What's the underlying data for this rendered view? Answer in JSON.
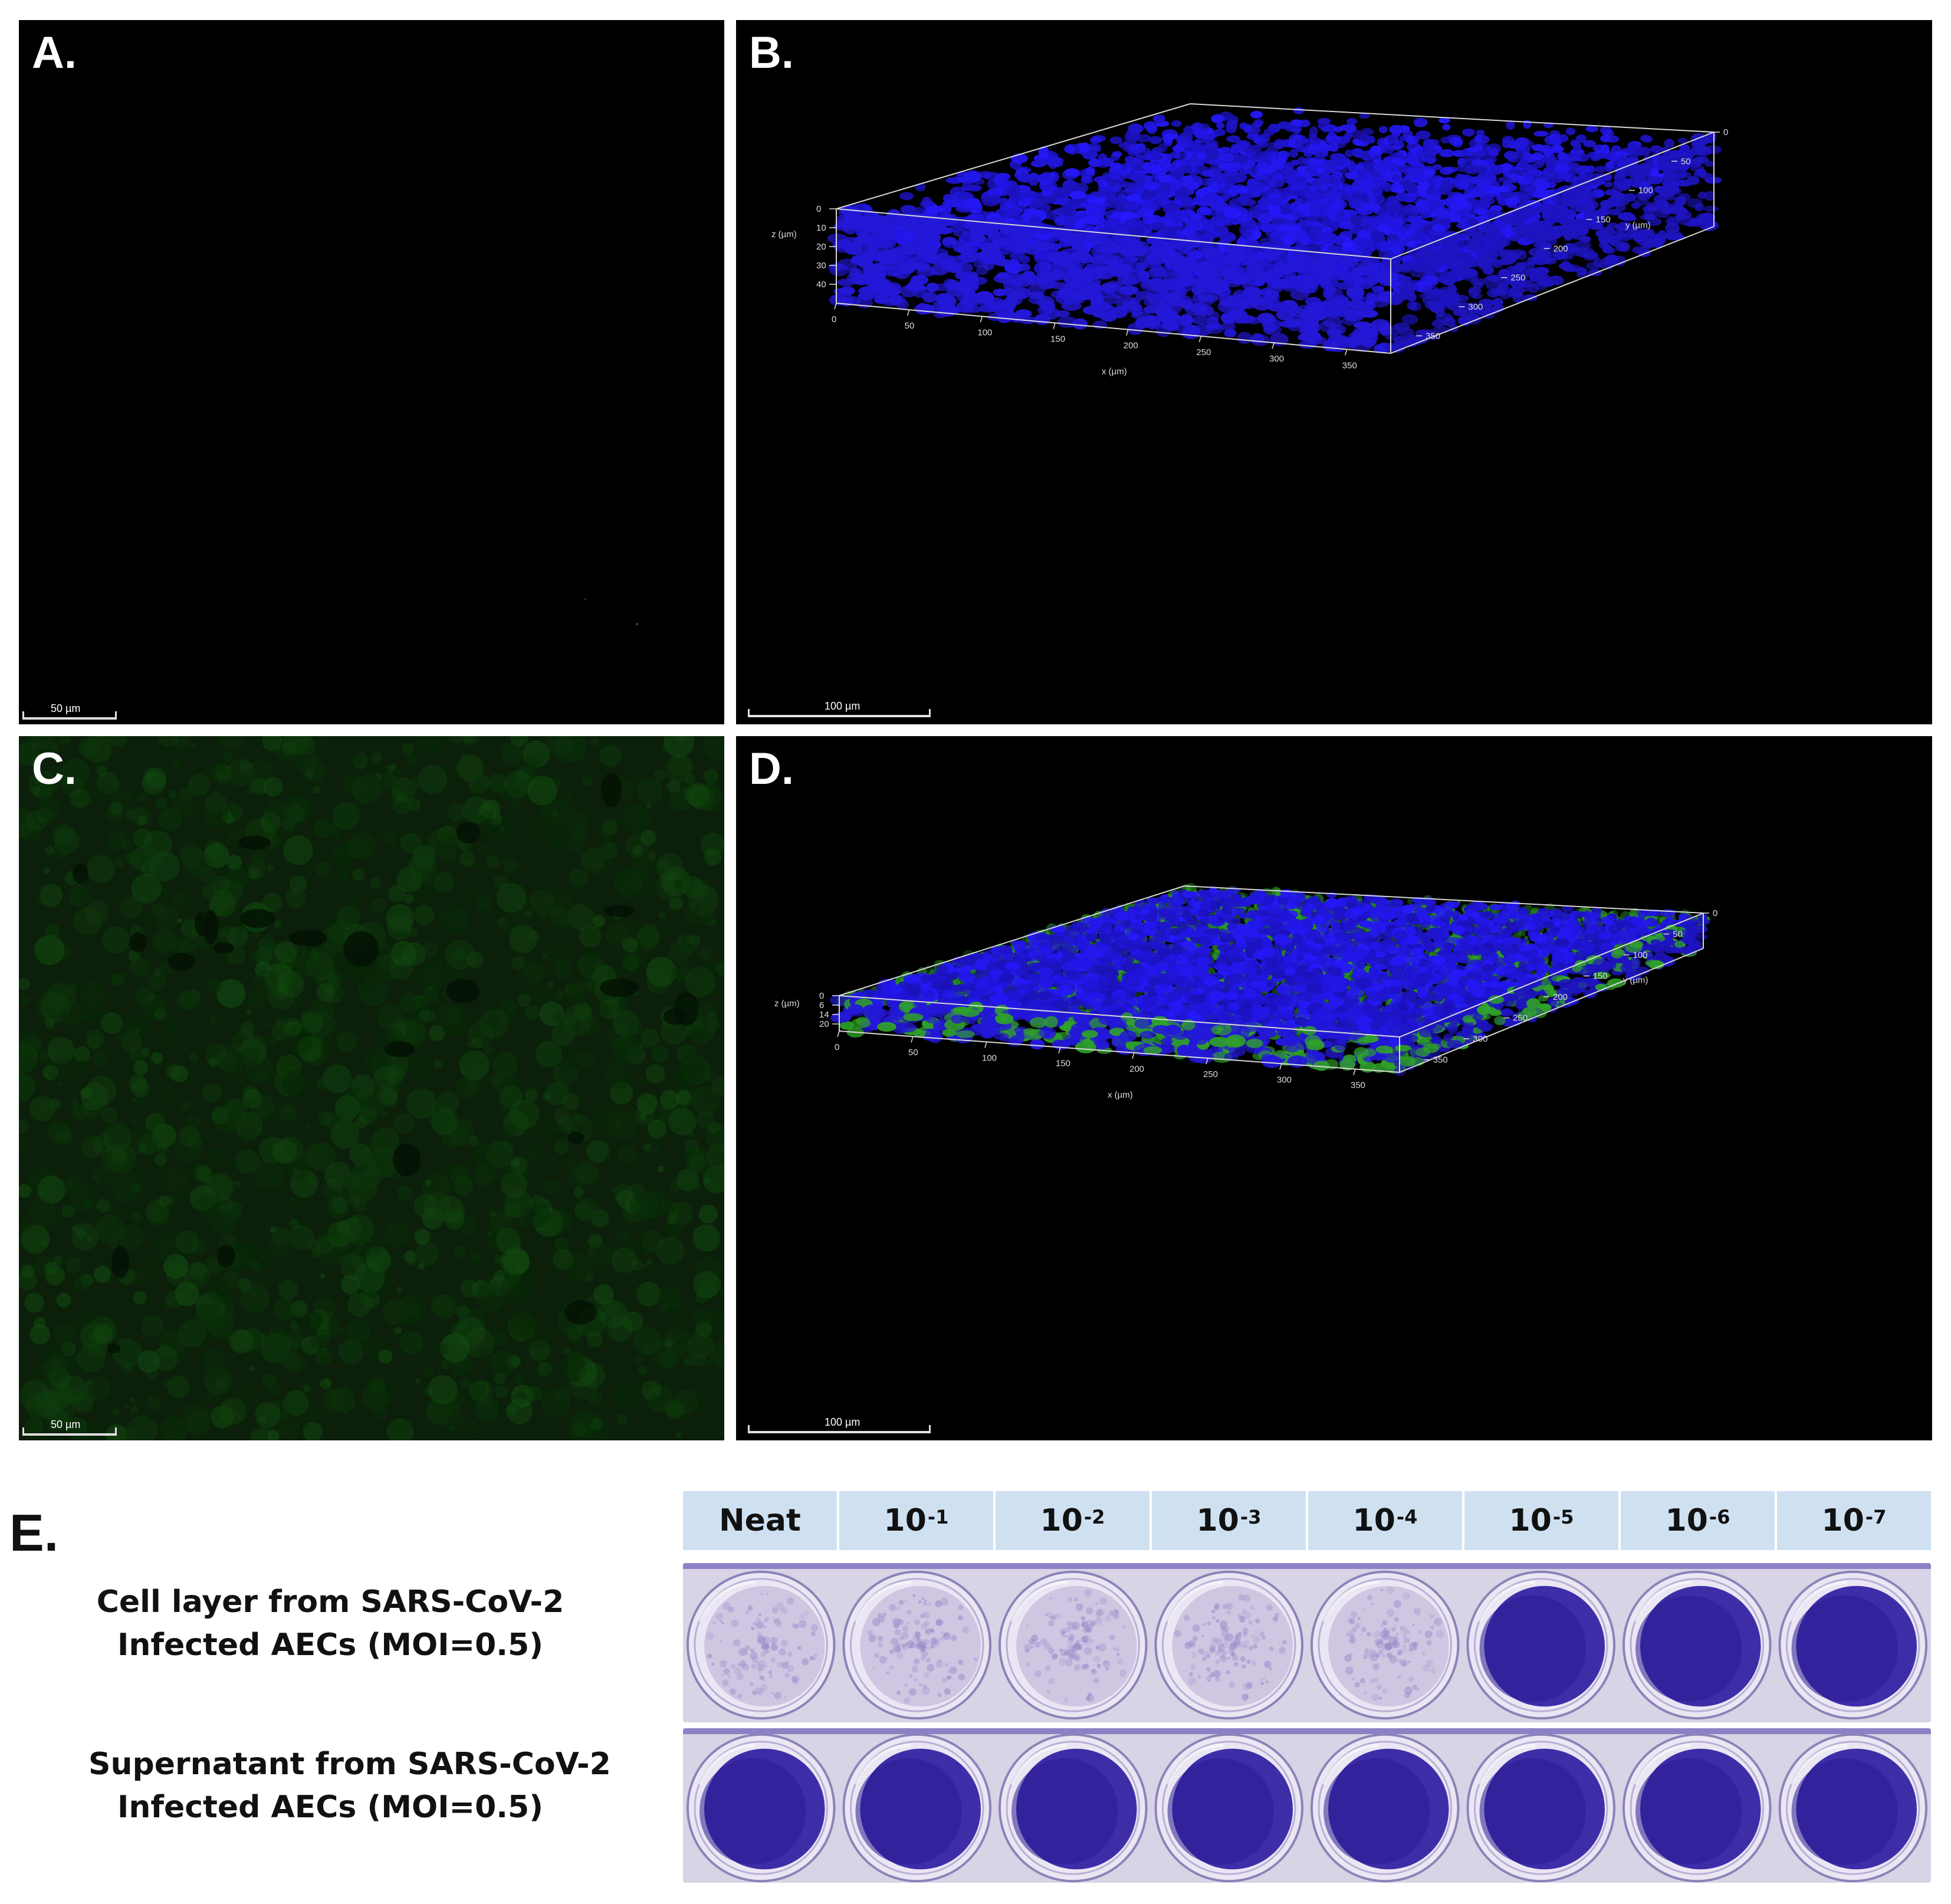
{
  "panels": {
    "a": {
      "label": "A.",
      "scale_text": "50 µm"
    },
    "b": {
      "label": "B.",
      "scale_text": "100 µm",
      "x_axis_label": "x (µm)",
      "y_axis_label": "y (µm)",
      "z_axis_label": "z (µm)",
      "x_ticks": [
        "0",
        "50",
        "100",
        "150",
        "200",
        "250",
        "300",
        "350"
      ],
      "y_ticks": [
        "0",
        "50",
        "100",
        "150",
        "200",
        "250",
        "300",
        "350"
      ],
      "z_ticks": [
        "0",
        "10",
        "20",
        "30",
        "40"
      ]
    },
    "c": {
      "label": "C.",
      "scale_text": "50 µm"
    },
    "d": {
      "label": "D.",
      "scale_text": "100 µm",
      "x_axis_label": "x (µm)",
      "y_axis_label": "y (µm)",
      "z_axis_label": "z (µm)",
      "x_ticks": [
        "0",
        "50",
        "100",
        "150",
        "200",
        "250",
        "300",
        "350"
      ],
      "y_ticks": [
        "0",
        "50",
        "100",
        "150",
        "200",
        "250",
        "300",
        "350"
      ],
      "z_ticks": [
        "0",
        "6",
        "14",
        "20"
      ]
    }
  },
  "panel_e": {
    "label": "E.",
    "columns": [
      {
        "base": "Neat",
        "exp": ""
      },
      {
        "base": "10",
        "exp": "-1"
      },
      {
        "base": "10",
        "exp": "-2"
      },
      {
        "base": "10",
        "exp": "-3"
      },
      {
        "base": "10",
        "exp": "-4"
      },
      {
        "base": "10",
        "exp": "-5"
      },
      {
        "base": "10",
        "exp": "-6"
      },
      {
        "base": "10",
        "exp": "-7"
      }
    ],
    "rows": [
      {
        "line1": "Cell layer from SARS-CoV-2",
        "line2": "Infected AECs (MOI=0.5)"
      },
      {
        "line1": "Supernatant from SARS-CoV-2",
        "line2": "Infected AECs (MOI=0.5)"
      }
    ]
  },
  "colors": {
    "nucleus_blue": "#2a1cff",
    "stain_green": "#2fa12a",
    "crystal_violet": "#3d2ea8",
    "cleared_well": "#cfc6e2",
    "header_blue": "#cfe1f1"
  },
  "well_states": {
    "row1": [
      "cleared",
      "cleared",
      "cleared",
      "cleared",
      "cleared",
      "stained",
      "stained",
      "stained"
    ],
    "row2": [
      "stained",
      "stained",
      "stained",
      "stained",
      "stained",
      "stained",
      "stained",
      "stained"
    ]
  }
}
